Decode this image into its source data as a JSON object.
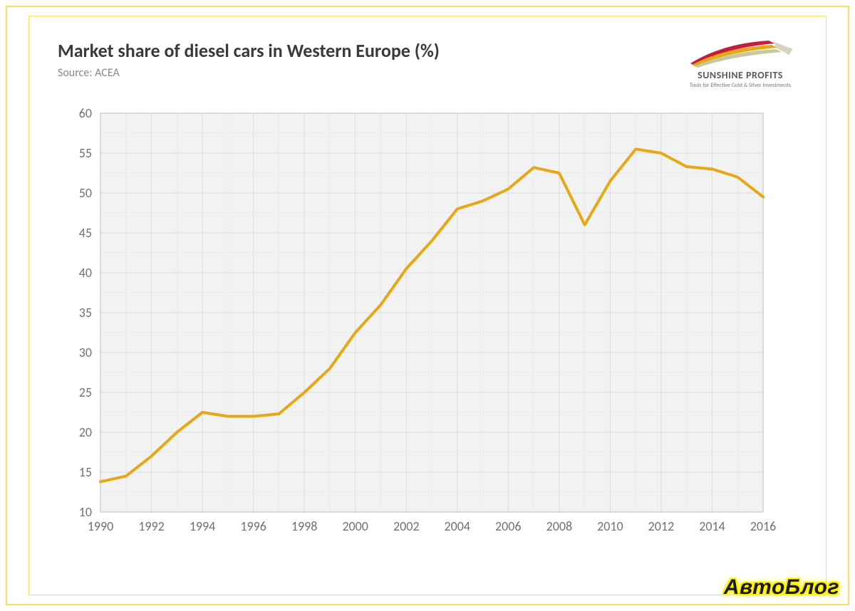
{
  "header": {
    "title": "Market share of diesel cars in Western Europe (%)",
    "source": "Source: ACEA",
    "logo_brand": "SUNSHINE PROFITS",
    "logo_tagline": "Tools for Effective Gold & Silver Investments"
  },
  "chart": {
    "type": "line",
    "background_color": "#f2f2f2",
    "plot_border_color": "#bcbcbc",
    "grid_major_color": "#dcdcdc",
    "grid_minor_color": "#e4e4e4",
    "line_color": "#e6a817",
    "line_width": 4,
    "axis_label_color": "#707070",
    "axis_label_fontsize": 18,
    "xlim": [
      1990,
      2016
    ],
    "x_ticks_major": [
      1990,
      1992,
      1994,
      1996,
      1998,
      2000,
      2002,
      2004,
      2006,
      2008,
      2010,
      2012,
      2014,
      2016
    ],
    "x_minor_step": 1,
    "ylim": [
      10,
      60
    ],
    "y_ticks_major": [
      10,
      15,
      20,
      25,
      30,
      35,
      40,
      45,
      50,
      55,
      60
    ],
    "y_minor_step": 2.5,
    "series": {
      "x": [
        1990,
        1991,
        1992,
        1993,
        1994,
        1995,
        1996,
        1997,
        1998,
        1999,
        2000,
        2001,
        2002,
        2003,
        2004,
        2005,
        2006,
        2007,
        2008,
        2009,
        2010,
        2011,
        2012,
        2013,
        2014,
        2015,
        2016
      ],
      "y": [
        13.8,
        14.5,
        17.0,
        20.0,
        22.5,
        22.0,
        22.0,
        22.3,
        25.0,
        28.0,
        32.5,
        36.0,
        40.5,
        44.0,
        48.0,
        49.0,
        50.5,
        53.2,
        52.5,
        46.0,
        51.5,
        55.5,
        55.0,
        53.3,
        53.0,
        52.0,
        49.5
      ]
    }
  },
  "watermark": "АвтоБлог",
  "logo_svg_colors": {
    "swoosh1": "#c41e3a",
    "swoosh2": "#e6a817",
    "swoosh3": "#c8c8a0",
    "swoosh4": "#d4d4c0"
  }
}
